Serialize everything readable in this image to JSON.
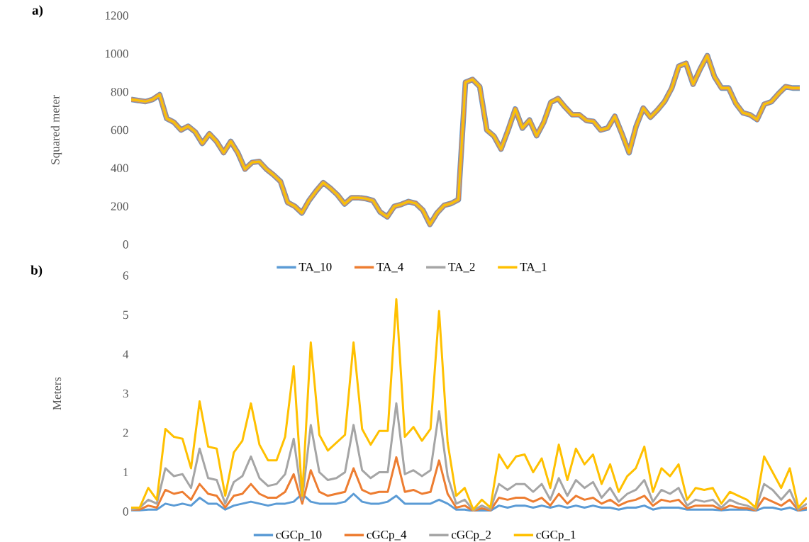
{
  "chart_data": [
    {
      "type": "line",
      "title": "a)",
      "ylabel": "Squared meter",
      "legend": "bottom",
      "categories": [
        null,
        null,
        null,
        null,
        null,
        null,
        null,
        null,
        null,
        null,
        null,
        null,
        null,
        null,
        null,
        null,
        null,
        null,
        null,
        null,
        null,
        null,
        null,
        null,
        null,
        null,
        null,
        null,
        null,
        null,
        null,
        null,
        null,
        null,
        null,
        null,
        null,
        null,
        null,
        null,
        null,
        null,
        null,
        null,
        null,
        null,
        null,
        null,
        null,
        null,
        null,
        null,
        null,
        null,
        null,
        null,
        null,
        null,
        null,
        null,
        null,
        null,
        null,
        null,
        null,
        null,
        null,
        null,
        null,
        null,
        null,
        null,
        null,
        null,
        null,
        null,
        null,
        null,
        null,
        null,
        null,
        null,
        null,
        null,
        null,
        null,
        null,
        null,
        null,
        null,
        null,
        null,
        null,
        null,
        null
      ],
      "ylim": [
        0,
        1200
      ],
      "yticks": [
        0,
        200,
        400,
        600,
        800,
        1000,
        1200
      ],
      "series": [
        {
          "name": "TA_10",
          "color": "#5b9bd5",
          "values": [
            760,
            755,
            749,
            760,
            785,
            660,
            641,
            600,
            620,
            590,
            530,
            580,
            540,
            481,
            540,
            480,
            395,
            430,
            435,
            395,
            365,
            330,
            220,
            200,
            165,
            230,
            280,
            324,
            295,
            260,
            212,
            245,
            245,
            240,
            230,
            170,
            145,
            200,
            210,
            225,
            215,
            180,
            105,
            165,
            205,
            215,
            235,
            850,
            865,
            827,
            600,
            568,
            500,
            600,
            710,
            610,
            652,
            570,
            640,
            745,
            765,
            720,
            680,
            680,
            650,
            645,
            600,
            610,
            672,
            580,
            481,
            620,
            715,
            667,
            705,
            750,
            820,
            935,
            950,
            840,
            920,
            990,
            880,
            820,
            820,
            740,
            690,
            680,
            655,
            735,
            748,
            790,
            827,
            820,
            820
          ]
        },
        {
          "name": "TA_4",
          "color": "#ed7d31",
          "values": [
            760,
            755,
            749,
            760,
            785,
            660,
            641,
            600,
            620,
            590,
            530,
            580,
            540,
            481,
            540,
            480,
            395,
            430,
            435,
            395,
            365,
            330,
            220,
            200,
            165,
            230,
            280,
            324,
            295,
            260,
            212,
            245,
            245,
            240,
            230,
            170,
            145,
            200,
            210,
            225,
            215,
            180,
            105,
            165,
            205,
            215,
            235,
            850,
            865,
            827,
            600,
            568,
            500,
            600,
            710,
            610,
            652,
            570,
            640,
            745,
            765,
            720,
            680,
            680,
            650,
            645,
            600,
            610,
            672,
            580,
            481,
            620,
            715,
            667,
            705,
            750,
            820,
            935,
            950,
            840,
            920,
            990,
            880,
            820,
            820,
            740,
            690,
            680,
            655,
            735,
            748,
            790,
            827,
            820,
            820
          ]
        },
        {
          "name": "TA_2",
          "color": "#a5a5a5",
          "values": [
            760,
            755,
            749,
            760,
            785,
            660,
            641,
            600,
            620,
            590,
            530,
            580,
            540,
            481,
            540,
            480,
            395,
            430,
            435,
            395,
            365,
            330,
            220,
            200,
            165,
            230,
            280,
            324,
            295,
            260,
            212,
            245,
            245,
            240,
            230,
            170,
            145,
            200,
            210,
            225,
            215,
            180,
            105,
            165,
            205,
            215,
            235,
            850,
            865,
            827,
            600,
            568,
            500,
            600,
            710,
            610,
            652,
            570,
            640,
            745,
            765,
            720,
            680,
            680,
            650,
            645,
            600,
            610,
            672,
            580,
            481,
            620,
            715,
            667,
            705,
            750,
            820,
            935,
            950,
            840,
            920,
            990,
            880,
            820,
            820,
            740,
            690,
            680,
            655,
            735,
            748,
            790,
            827,
            820,
            820
          ]
        },
        {
          "name": "TA_1",
          "color": "#ffc000",
          "values": [
            760,
            755,
            749,
            760,
            785,
            660,
            641,
            600,
            620,
            590,
            530,
            580,
            540,
            481,
            540,
            480,
            395,
            430,
            435,
            395,
            365,
            330,
            220,
            200,
            165,
            230,
            280,
            324,
            295,
            260,
            212,
            245,
            245,
            240,
            230,
            170,
            145,
            200,
            210,
            225,
            215,
            180,
            105,
            165,
            205,
            215,
            235,
            850,
            865,
            827,
            600,
            568,
            500,
            600,
            710,
            610,
            652,
            570,
            640,
            745,
            765,
            720,
            680,
            680,
            650,
            645,
            600,
            610,
            672,
            580,
            481,
            620,
            715,
            667,
            705,
            750,
            820,
            935,
            950,
            840,
            920,
            990,
            880,
            820,
            820,
            740,
            690,
            680,
            655,
            735,
            748,
            790,
            827,
            820,
            820
          ]
        }
      ]
    },
    {
      "type": "line",
      "title": "b)",
      "ylabel": "Meters",
      "legend": "bottom",
      "categories": [
        null,
        null,
        null,
        null,
        null,
        null,
        null,
        null,
        null,
        null,
        null,
        null,
        null,
        null,
        null,
        null,
        null,
        null,
        null,
        null,
        null,
        null,
        null,
        null,
        null,
        null,
        null,
        null,
        null,
        null,
        null,
        null,
        null,
        null,
        null,
        null,
        null,
        null,
        null,
        null,
        null,
        null,
        null,
        null,
        null,
        null,
        null,
        null,
        null,
        null,
        null,
        null,
        null,
        null,
        null,
        null,
        null,
        null,
        null,
        null,
        null,
        null,
        null,
        null,
        null,
        null,
        null,
        null,
        null,
        null,
        null,
        null,
        null,
        null,
        null,
        null,
        null,
        null,
        null,
        null
      ],
      "ylim": [
        0,
        6
      ],
      "yticks": [
        0,
        1,
        2,
        3,
        4,
        5,
        6
      ],
      "series": [
        {
          "name": "cGCp_10",
          "color": "#5b9bd5",
          "values": [
            0.03,
            0.03,
            0.05,
            0.05,
            0.2,
            0.15,
            0.2,
            0.15,
            0.35,
            0.2,
            0.2,
            0.05,
            0.15,
            0.2,
            0.25,
            0.2,
            0.15,
            0.2,
            0.2,
            0.25,
            0.45,
            0.25,
            0.2,
            0.2,
            0.2,
            0.25,
            0.45,
            0.25,
            0.2,
            0.2,
            0.25,
            0.4,
            0.2,
            0.2,
            0.2,
            0.2,
            0.3,
            0.2,
            0.05,
            0.05,
            0.01,
            0.03,
            0.02,
            0.15,
            0.1,
            0.15,
            0.15,
            0.1,
            0.15,
            0.1,
            0.15,
            0.1,
            0.15,
            0.1,
            0.15,
            0.1,
            0.1,
            0.05,
            0.1,
            0.1,
            0.15,
            0.05,
            0.1,
            0.1,
            0.1,
            0.05,
            0.05,
            0.05,
            0.05,
            0.03,
            0.05,
            0.05,
            0.05,
            0.02,
            0.1,
            0.1,
            0.05,
            0.1,
            0.02,
            0.05
          ]
        },
        {
          "name": "cGCp_4",
          "color": "#ed7d31",
          "values": [
            0.05,
            0.05,
            0.15,
            0.1,
            0.55,
            0.45,
            0.5,
            0.3,
            0.7,
            0.45,
            0.4,
            0.1,
            0.4,
            0.45,
            0.7,
            0.45,
            0.35,
            0.35,
            0.5,
            0.95,
            0.2,
            1.05,
            0.5,
            0.4,
            0.45,
            0.5,
            1.1,
            0.55,
            0.45,
            0.5,
            0.5,
            1.38,
            0.5,
            0.55,
            0.45,
            0.5,
            1.3,
            0.45,
            0.1,
            0.15,
            0.02,
            0.08,
            0.03,
            0.35,
            0.3,
            0.35,
            0.35,
            0.25,
            0.35,
            0.15,
            0.45,
            0.2,
            0.4,
            0.3,
            0.35,
            0.2,
            0.3,
            0.15,
            0.25,
            0.3,
            0.4,
            0.15,
            0.3,
            0.25,
            0.3,
            0.08,
            0.15,
            0.15,
            0.15,
            0.05,
            0.15,
            0.1,
            0.08,
            0.03,
            0.35,
            0.25,
            0.15,
            0.3,
            0.03,
            0.1
          ]
        },
        {
          "name": "cGCp_2",
          "color": "#a5a5a5",
          "values": [
            0.05,
            0.1,
            0.3,
            0.2,
            1.1,
            0.9,
            0.95,
            0.6,
            1.6,
            0.85,
            0.8,
            0.2,
            0.75,
            0.9,
            1.4,
            0.85,
            0.65,
            0.7,
            0.95,
            1.85,
            0.3,
            2.2,
            1.0,
            0.8,
            0.85,
            1.0,
            2.2,
            1.05,
            0.85,
            1.0,
            1.0,
            2.75,
            0.95,
            1.05,
            0.9,
            1.05,
            2.55,
            0.9,
            0.2,
            0.3,
            0.03,
            0.15,
            0.05,
            0.7,
            0.55,
            0.7,
            0.7,
            0.5,
            0.7,
            0.3,
            0.85,
            0.4,
            0.8,
            0.6,
            0.75,
            0.35,
            0.6,
            0.25,
            0.45,
            0.55,
            0.8,
            0.25,
            0.55,
            0.45,
            0.6,
            0.15,
            0.3,
            0.25,
            0.3,
            0.1,
            0.3,
            0.2,
            0.15,
            0.05,
            0.7,
            0.55,
            0.3,
            0.55,
            0.05,
            0.2
          ]
        },
        {
          "name": "cGCp_1",
          "color": "#ffc000",
          "values": [
            0.1,
            0.1,
            0.6,
            0.3,
            2.1,
            1.9,
            1.85,
            1.1,
            2.8,
            1.65,
            1.6,
            0.4,
            1.5,
            1.8,
            2.75,
            1.7,
            1.3,
            1.3,
            1.9,
            3.7,
            0.4,
            4.3,
            1.95,
            1.55,
            1.75,
            1.95,
            4.3,
            2.1,
            1.7,
            2.05,
            2.05,
            5.4,
            1.9,
            2.15,
            1.8,
            2.1,
            5.1,
            1.75,
            0.4,
            0.6,
            0.05,
            0.3,
            0.1,
            1.45,
            1.1,
            1.4,
            1.45,
            1.0,
            1.35,
            0.6,
            1.7,
            0.8,
            1.6,
            1.2,
            1.45,
            0.7,
            1.2,
            0.5,
            0.9,
            1.1,
            1.65,
            0.5,
            1.1,
            0.9,
            1.2,
            0.3,
            0.6,
            0.55,
            0.6,
            0.2,
            0.5,
            0.4,
            0.3,
            0.1,
            1.4,
            1.0,
            0.6,
            1.1,
            0.1,
            0.35
          ]
        }
      ]
    }
  ]
}
